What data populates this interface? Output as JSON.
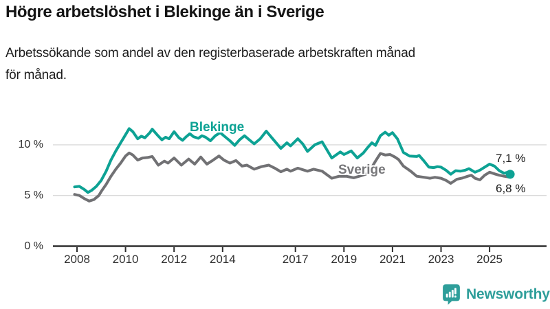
{
  "header": {
    "title": "Högre arbetslöshet i Blekinge än i Sverige",
    "subtitle_lines": [
      "Arbetssökande som andel av den registerbaserade arbetskraften månad",
      "för månad."
    ]
  },
  "chart_data": {
    "type": "line",
    "title": "Högre arbetslöshet i Blekinge än i Sverige",
    "subtitle": "Arbetssökande som andel av den registerbaserade arbetskraften månad för månad.",
    "unit": "%",
    "grid": "horizontal",
    "legend_position": "inline-labels",
    "xlim": [
      2007.6,
      2026.3
    ],
    "ylim": [
      0,
      13
    ],
    "x_ticks": [
      {
        "label": "2008",
        "year": 2008
      },
      {
        "label": "2010",
        "year": 2010
      },
      {
        "label": "2012",
        "year": 2012
      },
      {
        "label": "2014",
        "year": 2014
      },
      {
        "label": "2017",
        "year": 2017
      },
      {
        "label": "2019",
        "year": 2019
      },
      {
        "label": "2021",
        "year": 2021
      },
      {
        "label": "2023",
        "year": 2023
      },
      {
        "label": "2025",
        "year": 2025
      }
    ],
    "y_ticks": [
      {
        "label": "10 %",
        "value": 10
      },
      {
        "label": "5 %",
        "value": 5
      },
      {
        "label": "0 %",
        "value": 0
      }
    ],
    "series": [
      {
        "name": "Blekinge",
        "color": "#0da294",
        "end_label": "7,1 %",
        "last_value": 7.1,
        "end_dot": true,
        "points": [
          [
            2007.9,
            5.85
          ],
          [
            2008.1,
            5.9
          ],
          [
            2008.3,
            5.6
          ],
          [
            2008.45,
            5.3
          ],
          [
            2008.6,
            5.5
          ],
          [
            2008.8,
            5.9
          ],
          [
            2009.0,
            6.5
          ],
          [
            2009.2,
            7.4
          ],
          [
            2009.4,
            8.5
          ],
          [
            2009.6,
            9.4
          ],
          [
            2009.8,
            10.2
          ],
          [
            2010.0,
            11.0
          ],
          [
            2010.15,
            11.6
          ],
          [
            2010.3,
            11.3
          ],
          [
            2010.5,
            10.6
          ],
          [
            2010.65,
            10.85
          ],
          [
            2010.8,
            10.7
          ],
          [
            2011.0,
            11.2
          ],
          [
            2011.1,
            11.55
          ],
          [
            2011.3,
            11.0
          ],
          [
            2011.5,
            10.5
          ],
          [
            2011.65,
            10.75
          ],
          [
            2011.8,
            10.6
          ],
          [
            2012.0,
            11.3
          ],
          [
            2012.2,
            10.7
          ],
          [
            2012.35,
            10.45
          ],
          [
            2012.5,
            10.8
          ],
          [
            2012.65,
            11.1
          ],
          [
            2012.8,
            10.8
          ],
          [
            2013.0,
            10.65
          ],
          [
            2013.15,
            10.9
          ],
          [
            2013.3,
            10.75
          ],
          [
            2013.5,
            10.4
          ],
          [
            2013.7,
            10.9
          ],
          [
            2013.9,
            11.2
          ],
          [
            2014.1,
            10.8
          ],
          [
            2014.3,
            10.4
          ],
          [
            2014.5,
            9.95
          ],
          [
            2014.7,
            10.5
          ],
          [
            2014.9,
            10.9
          ],
          [
            2015.1,
            10.5
          ],
          [
            2015.3,
            10.1
          ],
          [
            2015.55,
            10.6
          ],
          [
            2015.8,
            11.35
          ],
          [
            2016.1,
            10.5
          ],
          [
            2016.4,
            9.65
          ],
          [
            2016.65,
            10.2
          ],
          [
            2016.8,
            9.9
          ],
          [
            2017.1,
            10.6
          ],
          [
            2017.3,
            10.1
          ],
          [
            2017.5,
            9.35
          ],
          [
            2017.8,
            10.0
          ],
          [
            2018.1,
            10.3
          ],
          [
            2018.5,
            8.7
          ],
          [
            2018.85,
            9.3
          ],
          [
            2019.0,
            9.05
          ],
          [
            2019.3,
            9.4
          ],
          [
            2019.55,
            8.7
          ],
          [
            2019.8,
            9.2
          ],
          [
            2020.0,
            9.8
          ],
          [
            2020.15,
            10.2
          ],
          [
            2020.3,
            9.95
          ],
          [
            2020.5,
            10.9
          ],
          [
            2020.7,
            11.25
          ],
          [
            2020.85,
            10.95
          ],
          [
            2021.0,
            11.2
          ],
          [
            2021.2,
            10.6
          ],
          [
            2021.45,
            9.25
          ],
          [
            2021.7,
            8.9
          ],
          [
            2022.0,
            8.85
          ],
          [
            2022.1,
            8.95
          ],
          [
            2022.3,
            8.4
          ],
          [
            2022.5,
            7.8
          ],
          [
            2022.7,
            7.75
          ],
          [
            2022.85,
            7.85
          ],
          [
            2023.0,
            7.8
          ],
          [
            2023.2,
            7.5
          ],
          [
            2023.4,
            7.1
          ],
          [
            2023.6,
            7.45
          ],
          [
            2023.8,
            7.4
          ],
          [
            2024.0,
            7.5
          ],
          [
            2024.15,
            7.65
          ],
          [
            2024.4,
            7.3
          ],
          [
            2024.6,
            7.5
          ],
          [
            2024.8,
            7.8
          ],
          [
            2025.0,
            8.1
          ],
          [
            2025.2,
            7.9
          ],
          [
            2025.4,
            7.45
          ],
          [
            2025.6,
            7.2
          ],
          [
            2025.75,
            7.3
          ],
          [
            2025.85,
            7.1
          ]
        ]
      },
      {
        "name": "Sverige",
        "color": "#717174",
        "end_label": "6,8 %",
        "last_value": 6.8,
        "end_dot": false,
        "points": [
          [
            2007.9,
            5.1
          ],
          [
            2008.1,
            5.0
          ],
          [
            2008.3,
            4.7
          ],
          [
            2008.5,
            4.45
          ],
          [
            2008.7,
            4.6
          ],
          [
            2008.9,
            5.0
          ],
          [
            2009.0,
            5.4
          ],
          [
            2009.2,
            6.1
          ],
          [
            2009.4,
            6.9
          ],
          [
            2009.6,
            7.6
          ],
          [
            2009.8,
            8.2
          ],
          [
            2010.0,
            8.9
          ],
          [
            2010.15,
            9.2
          ],
          [
            2010.3,
            9.0
          ],
          [
            2010.5,
            8.5
          ],
          [
            2010.7,
            8.7
          ],
          [
            2010.9,
            8.75
          ],
          [
            2011.1,
            8.85
          ],
          [
            2011.35,
            8.0
          ],
          [
            2011.6,
            8.4
          ],
          [
            2011.75,
            8.2
          ],
          [
            2012.0,
            8.7
          ],
          [
            2012.3,
            8.0
          ],
          [
            2012.6,
            8.6
          ],
          [
            2012.85,
            8.1
          ],
          [
            2013.1,
            8.8
          ],
          [
            2013.35,
            8.1
          ],
          [
            2013.55,
            8.4
          ],
          [
            2013.85,
            8.9
          ],
          [
            2014.05,
            8.5
          ],
          [
            2014.3,
            8.2
          ],
          [
            2014.55,
            8.45
          ],
          [
            2014.8,
            7.9
          ],
          [
            2015.0,
            8.0
          ],
          [
            2015.3,
            7.6
          ],
          [
            2015.6,
            7.85
          ],
          [
            2015.9,
            8.0
          ],
          [
            2016.15,
            7.7
          ],
          [
            2016.4,
            7.35
          ],
          [
            2016.65,
            7.6
          ],
          [
            2016.8,
            7.4
          ],
          [
            2017.1,
            7.7
          ],
          [
            2017.5,
            7.4
          ],
          [
            2017.75,
            7.6
          ],
          [
            2018.1,
            7.4
          ],
          [
            2018.5,
            6.7
          ],
          [
            2018.8,
            6.9
          ],
          [
            2019.1,
            6.9
          ],
          [
            2019.4,
            6.75
          ],
          [
            2019.7,
            6.95
          ],
          [
            2020.0,
            7.2
          ],
          [
            2020.3,
            8.4
          ],
          [
            2020.5,
            9.15
          ],
          [
            2020.7,
            9.0
          ],
          [
            2020.9,
            9.05
          ],
          [
            2021.1,
            8.8
          ],
          [
            2021.25,
            8.55
          ],
          [
            2021.45,
            7.9
          ],
          [
            2021.75,
            7.4
          ],
          [
            2022.0,
            6.9
          ],
          [
            2022.3,
            6.8
          ],
          [
            2022.55,
            6.7
          ],
          [
            2022.75,
            6.8
          ],
          [
            2023.0,
            6.7
          ],
          [
            2023.2,
            6.5
          ],
          [
            2023.4,
            6.2
          ],
          [
            2023.65,
            6.6
          ],
          [
            2023.85,
            6.7
          ],
          [
            2024.1,
            6.9
          ],
          [
            2024.25,
            7.0
          ],
          [
            2024.4,
            6.7
          ],
          [
            2024.6,
            6.55
          ],
          [
            2024.8,
            7.0
          ],
          [
            2025.0,
            7.3
          ],
          [
            2025.25,
            7.1
          ],
          [
            2025.4,
            7.0
          ],
          [
            2025.6,
            6.9
          ],
          [
            2025.85,
            6.8
          ]
        ]
      }
    ],
    "colors": {
      "grid": "#dadada",
      "axis": "#2f2f2f",
      "tick_text": "#2f2f2f"
    }
  },
  "footer": {
    "brand": "Newsworthy",
    "brand_color": "#2e9e9a",
    "logo_icon": "newsworthy-speech-bubble-bar-chart-icon"
  }
}
